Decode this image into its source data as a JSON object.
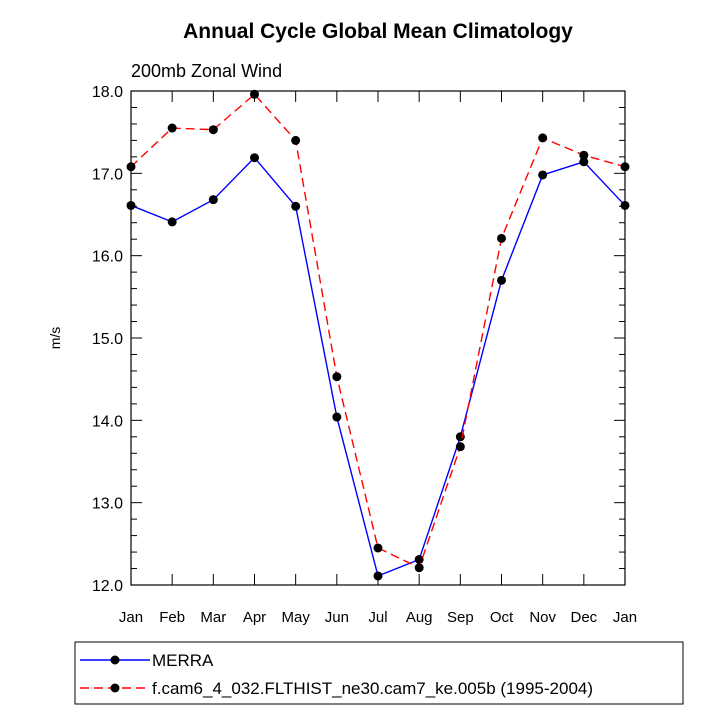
{
  "chart_data": {
    "type": "line",
    "title": "Annual Cycle Global Mean Climatology",
    "subtitle": "200mb Zonal Wind",
    "xlabel": "",
    "ylabel": "m/s",
    "categories": [
      "Jan",
      "Feb",
      "Mar",
      "Apr",
      "May",
      "Jun",
      "Jul",
      "Aug",
      "Sep",
      "Oct",
      "Nov",
      "Dec",
      "Jan"
    ],
    "ylim": [
      12.0,
      18.0
    ],
    "yticks": [
      12.0,
      13.0,
      14.0,
      15.0,
      16.0,
      17.0,
      18.0
    ],
    "ytick_labels": [
      "12.0",
      "13.0",
      "14.0",
      "15.0",
      "16.0",
      "17.0",
      "18.0"
    ],
    "grid": false,
    "legend_position": "bottom",
    "series": [
      {
        "name": "MERRA",
        "color": "#0000ff",
        "dash": "solid",
        "values": [
          16.61,
          16.41,
          16.68,
          17.19,
          16.6,
          14.04,
          12.11,
          12.31,
          13.8,
          15.7,
          16.98,
          17.14,
          16.61
        ]
      },
      {
        "name": "f.cam6_4_032.FLTHIST_ne30.cam7_ke.005b (1995-2004)",
        "color": "#ff0000",
        "dash": "dashed",
        "values": [
          17.08,
          17.55,
          17.53,
          17.96,
          17.4,
          14.53,
          12.45,
          12.21,
          13.68,
          16.21,
          17.43,
          17.22,
          17.08
        ]
      }
    ]
  }
}
